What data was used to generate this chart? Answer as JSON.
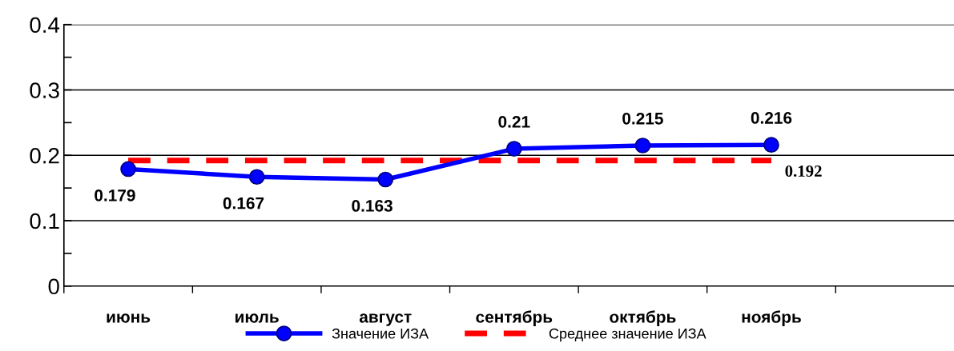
{
  "chart_data": {
    "type": "line",
    "categories": [
      "июнь",
      "июль",
      "август",
      "сентябрь",
      "октябрь",
      "ноябрь",
      null
    ],
    "series": [
      {
        "name": "Значение ИЗА",
        "color": "#0000ff",
        "values": [
          0.179,
          0.167,
          0.163,
          0.21,
          0.215,
          0.216,
          null
        ],
        "value_labels": [
          "0.179",
          "0.167",
          "0.163",
          "0.21",
          "0.215",
          "0.216",
          null
        ],
        "marker": "circle",
        "line_style": "solid"
      },
      {
        "name": "Среднее значение ИЗА",
        "color": "#ff0000",
        "values": [
          0.192,
          0.192,
          0.192,
          0.192,
          0.192,
          0.192,
          null
        ],
        "value_labels": [
          null,
          null,
          null,
          null,
          null,
          "0.192",
          null
        ],
        "marker": "none",
        "line_style": "dashed"
      }
    ],
    "ylim": [
      0,
      0.4
    ],
    "yticks": [
      0,
      {
        "value": 0.05,
        "label": null
      },
      0.1,
      {
        "value": 0.15,
        "label": null
      },
      0.2,
      {
        "value": 0.25,
        "label": null
      },
      0.3,
      {
        "value": 0.35,
        "label": null
      },
      0.4
    ],
    "grid": "y",
    "legend": "bottom"
  }
}
